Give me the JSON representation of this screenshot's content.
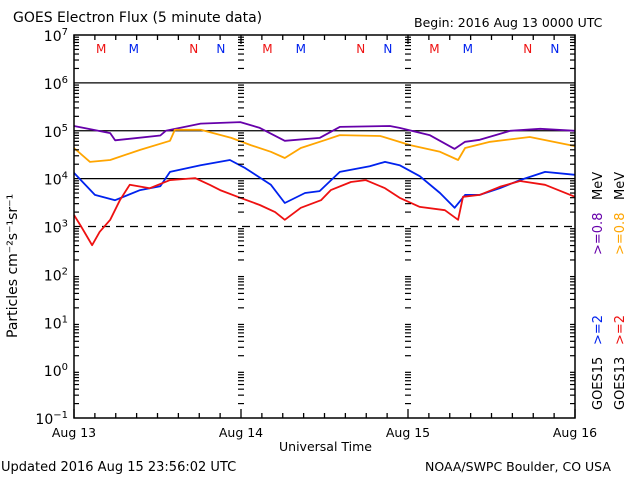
{
  "header": {
    "title": "GOES Electron Flux (5 minute data)",
    "begin": "Begin: 2016 Aug 13 0000 UTC"
  },
  "footer": {
    "updated": "Updated 2016 Aug 15 23:56:02 UTC",
    "credit": "NOAA/SWPC Boulder, CO USA"
  },
  "colors": {
    "goes15_08": "#6600aa",
    "goes13_08": "#ffa500",
    "goes15_2": "#0022ee",
    "goes13_2": "#ee1111",
    "axis": "#000000"
  },
  "chart_data": {
    "type": "line",
    "title": "GOES Electron Flux (5 minute data)",
    "xlabel": "Universal Time",
    "ylabel": "Particles cm⁻²s⁻¹sr⁻¹",
    "yscale": "log",
    "ylim_log10": [
      -1,
      7
    ],
    "xlim_hours": [
      0,
      72
    ],
    "x_ticks": [
      {
        "hour": 0,
        "label": "Aug 13"
      },
      {
        "hour": 24,
        "label": "Aug 14"
      },
      {
        "hour": 48,
        "label": "Aug 15"
      },
      {
        "hour": 72,
        "label": "Aug 16"
      }
    ],
    "y_ticks": [
      {
        "exp": 7,
        "base": "10",
        "sup": "7"
      },
      {
        "exp": 6,
        "base": "10",
        "sup": "6"
      },
      {
        "exp": 5,
        "base": "10",
        "sup": "5"
      },
      {
        "exp": 4,
        "base": "10",
        "sup": "4"
      },
      {
        "exp": 3,
        "base": "10",
        "sup": "3"
      },
      {
        "exp": 2,
        "base": "10",
        "sup": "2"
      },
      {
        "exp": 1,
        "base": "10",
        "sup": "1"
      },
      {
        "exp": 0,
        "base": "10",
        "sup": "0"
      },
      {
        "exp": -1,
        "base": "10",
        "sup": "−1"
      }
    ],
    "reference_lines": [
      {
        "log10": 6,
        "style": "solid"
      },
      {
        "log10": 5,
        "style": "solid"
      },
      {
        "log10": 4,
        "style": "solid"
      },
      {
        "log10": 3,
        "style": "dashed"
      }
    ],
    "markers": [
      {
        "hour": 3.9,
        "label": "M",
        "color": "#ee1111"
      },
      {
        "hour": 8.6,
        "label": "M",
        "color": "#0022ee"
      },
      {
        "hour": 17.2,
        "label": "N",
        "color": "#ee1111"
      },
      {
        "hour": 21.1,
        "label": "N",
        "color": "#0022ee"
      },
      {
        "hour": 27.8,
        "label": "M",
        "color": "#ee1111"
      },
      {
        "hour": 32.6,
        "label": "M",
        "color": "#0022ee"
      },
      {
        "hour": 41.2,
        "label": "N",
        "color": "#ee1111"
      },
      {
        "hour": 45.1,
        "label": "N",
        "color": "#0022ee"
      },
      {
        "hour": 51.8,
        "label": "M",
        "color": "#ee1111"
      },
      {
        "hour": 56.6,
        "label": "M",
        "color": "#0022ee"
      },
      {
        "hour": 65.2,
        "label": "N",
        "color": "#ee1111"
      },
      {
        "hour": 69.1,
        "label": "N",
        "color": "#0022ee"
      }
    ],
    "legend": [
      {
        "sat": "GOES15",
        "energy": ">=2",
        "energy2": ">=0.8",
        "unit": "MeV",
        "c1": "#0022ee",
        "c2": "#6600aa"
      },
      {
        "sat": "GOES13",
        "energy": ">=2",
        "energy2": ">=0.8",
        "unit": "MeV",
        "c1": "#ee1111",
        "c2": "#ffa500"
      }
    ],
    "legend_position": "right-outside",
    "series": [
      {
        "name": "GOES15 >=0.8 MeV",
        "color": "#6600aa",
        "hours": [
          0,
          5.2,
          5.9,
          12.4,
          13.2,
          18.2,
          23.9,
          26.7,
          30.3,
          35.3,
          38.2,
          45.4,
          46.8,
          51.1,
          54.7,
          56.2,
          58.3,
          62.7,
          67.0,
          72
        ],
        "log10": [
          5.1,
          4.95,
          4.8,
          4.9,
          5.0,
          5.15,
          5.18,
          5.06,
          4.79,
          4.85,
          5.08,
          5.1,
          5.06,
          4.91,
          4.62,
          4.77,
          4.81,
          5.0,
          5.04,
          5.0
        ]
      },
      {
        "name": "GOES13 >=0.8 MeV",
        "color": "#ffa500",
        "hours": [
          0,
          2.3,
          5.2,
          9.5,
          13.8,
          14.5,
          18.2,
          22.6,
          25.4,
          28.3,
          30.3,
          32.6,
          36.2,
          38.2,
          44.0,
          48.3,
          52.6,
          55.2,
          56.2,
          59.8,
          65.5,
          72
        ],
        "log10": [
          4.64,
          4.35,
          4.39,
          4.6,
          4.79,
          5.02,
          5.02,
          4.85,
          4.7,
          4.56,
          4.43,
          4.64,
          4.81,
          4.91,
          4.89,
          4.7,
          4.56,
          4.39,
          4.64,
          4.77,
          4.87,
          4.68
        ]
      },
      {
        "name": "GOES15 >=2 MeV",
        "color": "#0022ee",
        "hours": [
          0,
          3.0,
          5.9,
          9.5,
          12.4,
          13.8,
          18.2,
          22.4,
          24.6,
          28.3,
          30.3,
          33.2,
          35.3,
          38.2,
          42.5,
          44.7,
          46.8,
          49.7,
          52.6,
          54.7,
          56.2,
          58.3,
          61.2,
          64.1,
          67.7,
          72
        ],
        "log10": [
          4.12,
          3.66,
          3.55,
          3.76,
          3.84,
          4.14,
          4.28,
          4.39,
          4.22,
          3.87,
          3.49,
          3.7,
          3.74,
          4.14,
          4.26,
          4.35,
          4.28,
          4.05,
          3.7,
          3.39,
          3.66,
          3.66,
          3.8,
          3.97,
          4.14,
          4.08
        ]
      },
      {
        "name": "GOES13 >=2 MeV",
        "color": "#ee1111",
        "hours": [
          0,
          0.9,
          2.0,
          2.6,
          3.7,
          5.2,
          6.6,
          8.0,
          10.9,
          13.8,
          17.4,
          19.5,
          21.0,
          23.9,
          26.7,
          28.9,
          30.3,
          32.6,
          35.5,
          36.9,
          39.8,
          41.9,
          44.7,
          46.8,
          49.7,
          53.3,
          55.2,
          55.9,
          58.3,
          61.2,
          64.1,
          67.7,
          72
        ],
        "log10": [
          3.24,
          3.03,
          2.76,
          2.61,
          2.89,
          3.14,
          3.55,
          3.87,
          3.8,
          3.97,
          4.01,
          3.87,
          3.76,
          3.6,
          3.45,
          3.3,
          3.14,
          3.39,
          3.55,
          3.76,
          3.93,
          3.97,
          3.8,
          3.6,
          3.41,
          3.34,
          3.14,
          3.62,
          3.66,
          3.83,
          3.95,
          3.87,
          3.62
        ]
      }
    ]
  }
}
